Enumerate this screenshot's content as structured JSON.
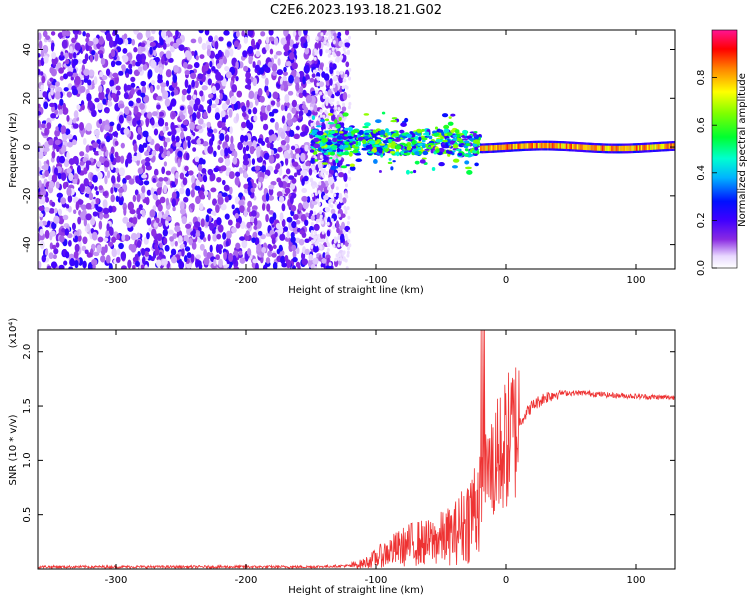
{
  "figure_title": "C2E6.2023.193.18.21.G02",
  "chart_data": [
    {
      "type": "heatmap",
      "xlabel": "Height of straight line (km)",
      "ylabel": "Frequency (Hz)",
      "xlim": [
        -360,
        130
      ],
      "ylim": [
        -50,
        48
      ],
      "xticks": [
        -300,
        -200,
        -100,
        0,
        100
      ],
      "yticks": [
        -40,
        -20,
        0,
        20,
        40
      ],
      "colorbar": {
        "label": "Normalized spectral amplitude",
        "range": [
          0,
          1
        ],
        "ticks": [
          0.0,
          0.2,
          0.4,
          0.6,
          0.8
        ],
        "colors": [
          "#ffffff",
          "#8a2be2",
          "#5a00ff",
          "#0000ff",
          "#00c8ff",
          "#00ffc0",
          "#00ff00",
          "#c8ff00",
          "#ffff00",
          "#ff8000",
          "#ff0000",
          "#ff1493"
        ]
      },
      "regions": [
        {
          "name": "noise",
          "x_range": [
            -360,
            -122
          ],
          "freq_range": [
            -50,
            48
          ],
          "amplitude": 0.12
        },
        {
          "name": "transition",
          "x_range": [
            -150,
            -20
          ],
          "freq_center": 2,
          "freq_width": 10,
          "amplitude": 0.45
        },
        {
          "name": "carrier",
          "x_range": [
            -20,
            130
          ],
          "freq_center": 0,
          "freq_width": 4,
          "amplitude": 0.8
        }
      ]
    },
    {
      "type": "line",
      "series_color": "#ee3333",
      "xlabel": "Height of straight line (km)",
      "ylabel": "SNR (10 * v/v)",
      "yscale_label": "(x10⁴)",
      "xlim": [
        -360,
        130
      ],
      "ylim": [
        0,
        2.2
      ],
      "xticks": [
        -300,
        -200,
        -100,
        0,
        100
      ],
      "yticks": [
        0.5,
        1.0,
        1.5,
        2.0
      ],
      "series": [
        {
          "name": "SNR",
          "x": [
            -360,
            -300,
            -250,
            -200,
            -150,
            -120,
            -110,
            -100,
            -90,
            -80,
            -70,
            -60,
            -50,
            -40,
            -30,
            -25,
            -20,
            -15,
            -10,
            -5,
            0,
            10,
            20,
            30,
            40,
            60,
            80,
            100,
            120,
            130
          ],
          "y": [
            0.02,
            0.02,
            0.02,
            0.02,
            0.02,
            0.03,
            0.05,
            0.1,
            0.16,
            0.2,
            0.24,
            0.24,
            0.28,
            0.32,
            0.45,
            0.55,
            0.7,
            0.85,
            0.95,
            1.05,
            1.15,
            1.35,
            1.5,
            1.58,
            1.62,
            1.62,
            1.6,
            1.59,
            1.58,
            1.58
          ]
        }
      ]
    }
  ]
}
